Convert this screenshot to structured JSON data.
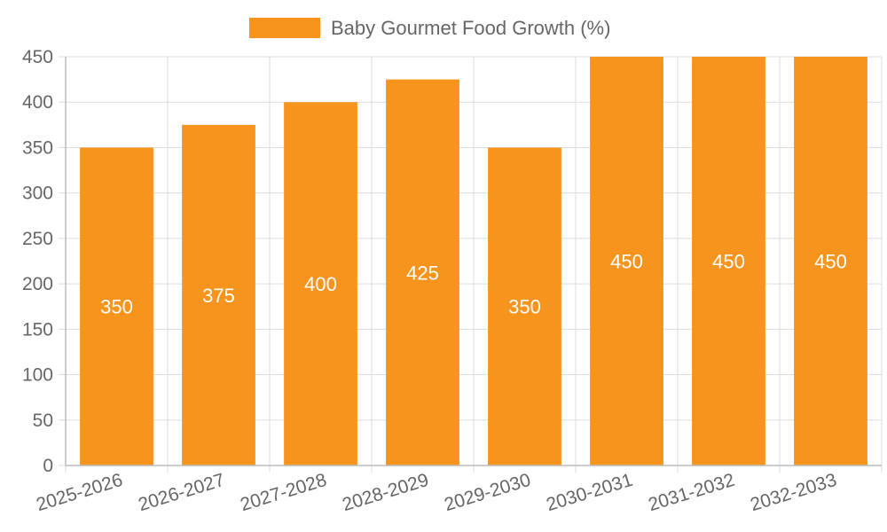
{
  "chart_data": {
    "type": "bar",
    "categories": [
      "2025-2026",
      "2026-2027",
      "2027-2028",
      "2028-2029",
      "2029-2030",
      "2030-2031",
      "2031-2032",
      "2032-2033"
    ],
    "series": [
      {
        "name": "Baby Gourmet Food Growth (%)",
        "values": [
          350,
          375,
          400,
          425,
          350,
          450,
          450,
          450
        ]
      }
    ],
    "ylim": [
      0,
      450
    ],
    "yticks": [
      0,
      50,
      100,
      150,
      200,
      250,
      300,
      350,
      400,
      450
    ],
    "grid": true,
    "legend_position": "top",
    "colors": {
      "bar": "#f7941d",
      "grid": "#dddddd",
      "axis": "#bbbbbb",
      "text": "#666666",
      "label": "#ffffff"
    }
  }
}
